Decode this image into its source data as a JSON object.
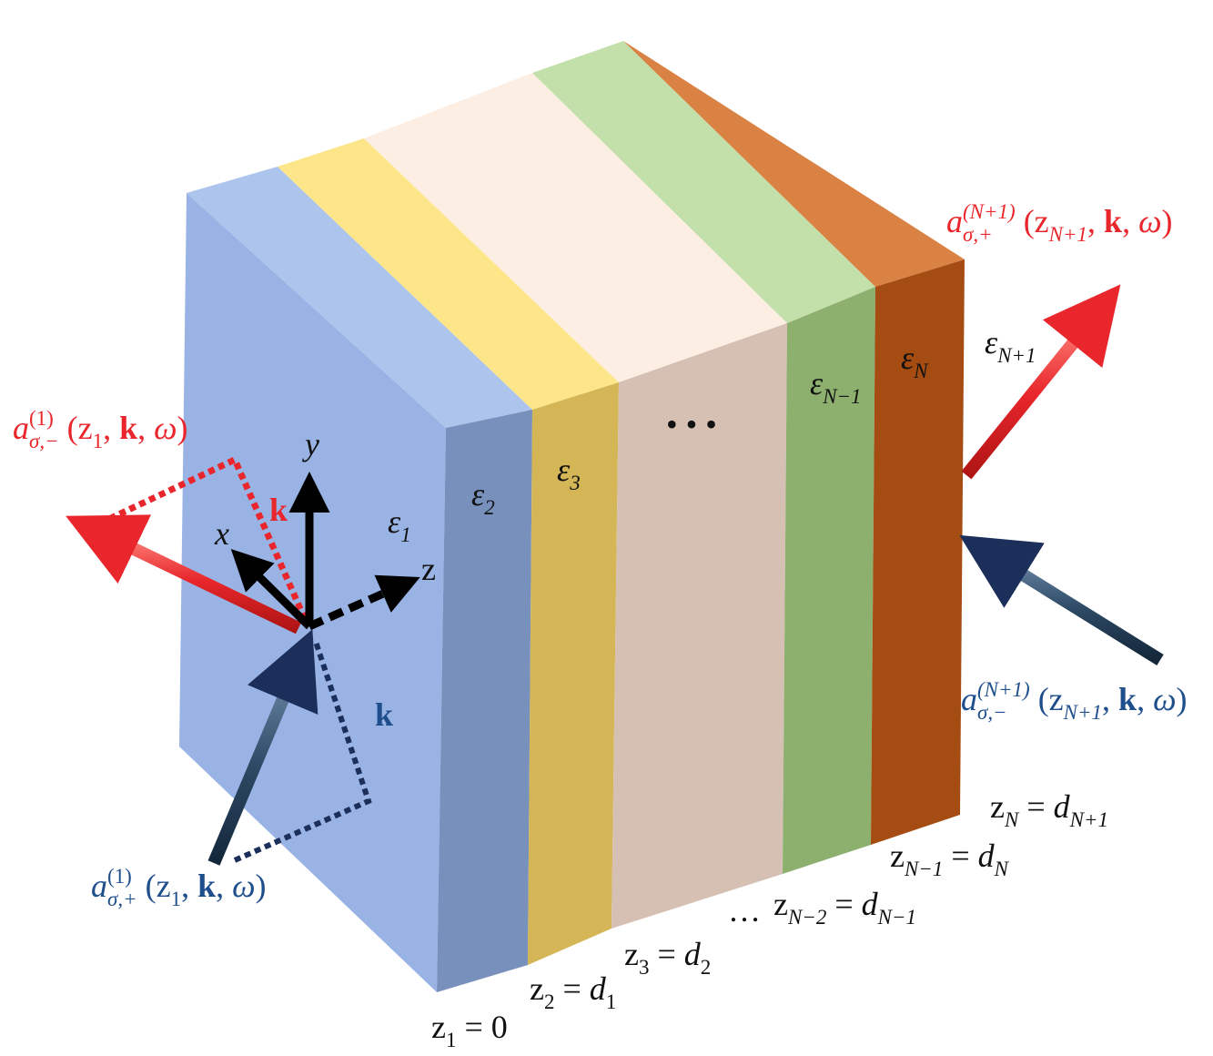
{
  "labels": [
    {
      "color": "#e8262b",
      "parts": [
        [
          "a",
          "i"
        ],
        [
          "(N+1)",
          "i sup"
        ],
        [
          "σ,+",
          "i sub stack"
        ],
        [
          " (z",
          "n"
        ],
        [
          "N+1",
          "i sub"
        ],
        [
          ", ",
          "n"
        ],
        [
          "k",
          "b"
        ],
        [
          ", ",
          "n"
        ],
        [
          "ω",
          "i"
        ],
        [
          ")",
          "n"
        ]
      ]
    },
    {
      "color": "#111111",
      "parts": [
        [
          "ε",
          "i"
        ],
        [
          "N+1",
          "i sub"
        ]
      ]
    },
    {
      "color": "#111111",
      "parts": [
        [
          "ε",
          "i"
        ],
        [
          "N",
          "i sub"
        ]
      ]
    },
    {
      "color": "#111111",
      "parts": [
        [
          "ε",
          "i"
        ],
        [
          "N−1",
          "i sub"
        ]
      ]
    },
    {
      "color": "#111111",
      "parts": [
        [
          "• • •",
          "n"
        ]
      ]
    },
    {
      "color": "#111111",
      "parts": [
        [
          "ε",
          "i"
        ],
        [
          "3",
          "i sub"
        ]
      ]
    },
    {
      "color": "#111111",
      "parts": [
        [
          "ε",
          "i"
        ],
        [
          "2",
          "i sub"
        ]
      ]
    },
    {
      "color": "#111111",
      "parts": [
        [
          "ε",
          "i"
        ],
        [
          "1",
          "i sub"
        ]
      ]
    },
    {
      "color": "#e8262b",
      "parts": [
        [
          "a",
          "i"
        ],
        [
          "(1)",
          "sup"
        ],
        [
          "σ,−",
          "i sub stack"
        ],
        [
          " (z",
          "n"
        ],
        [
          "1",
          "sub"
        ],
        [
          ", ",
          "n"
        ],
        [
          "k",
          "b"
        ],
        [
          ", ",
          "n"
        ],
        [
          "ω",
          "i"
        ],
        [
          ")",
          "n"
        ]
      ]
    },
    {
      "color": "#111111",
      "parts": [
        [
          "y",
          "i"
        ]
      ]
    },
    {
      "color": "#111111",
      "parts": [
        [
          "x",
          "i"
        ]
      ]
    },
    {
      "color": "#111111",
      "parts": [
        [
          "z",
          "n"
        ]
      ]
    },
    {
      "color": "#e8262b",
      "parts": [
        [
          "k",
          "b"
        ]
      ]
    },
    {
      "color": "#1f4e8c",
      "parts": [
        [
          "k",
          "b"
        ]
      ]
    },
    {
      "color": "#1f4e8c",
      "parts": [
        [
          "a",
          "i"
        ],
        [
          "(N+1)",
          "i sup"
        ],
        [
          "σ,−",
          "i sub stack"
        ],
        [
          " (z",
          "n"
        ],
        [
          "N+1",
          "i sub"
        ],
        [
          ", ",
          "n"
        ],
        [
          "k",
          "b"
        ],
        [
          ", ",
          "n"
        ],
        [
          "ω",
          "i"
        ],
        [
          ")",
          "n"
        ]
      ]
    },
    {
      "color": "#1f4e8c",
      "parts": [
        [
          "a",
          "i"
        ],
        [
          "(1)",
          "sup"
        ],
        [
          "σ,+",
          "i sub stack"
        ],
        [
          " (z",
          "n"
        ],
        [
          "1",
          "sub"
        ],
        [
          ", ",
          "n"
        ],
        [
          "k",
          "b"
        ],
        [
          ", ",
          "n"
        ],
        [
          "ω",
          "i"
        ],
        [
          ")",
          "n"
        ]
      ]
    },
    {
      "color": "#111111",
      "parts": [
        [
          "z",
          "n"
        ],
        [
          "N",
          "i sub"
        ],
        [
          " = ",
          "n"
        ],
        [
          "d",
          "i"
        ],
        [
          "N+1",
          "i sub"
        ]
      ]
    },
    {
      "color": "#111111",
      "parts": [
        [
          "z",
          "n"
        ],
        [
          "N−1",
          "i sub"
        ],
        [
          " = ",
          "n"
        ],
        [
          "d",
          "i"
        ],
        [
          "N",
          "i sub"
        ]
      ]
    },
    {
      "color": "#111111",
      "parts": [
        [
          "…",
          "n"
        ]
      ]
    },
    {
      "color": "#111111",
      "parts": [
        [
          "z",
          "n"
        ],
        [
          "N−2",
          "i sub"
        ],
        [
          " = ",
          "n"
        ],
        [
          "d",
          "i"
        ],
        [
          "N−1",
          "i sub"
        ]
      ]
    },
    {
      "color": "#111111",
      "parts": [
        [
          "z",
          "n"
        ],
        [
          "3",
          "sub"
        ],
        [
          " = ",
          "n"
        ],
        [
          "d",
          "i"
        ],
        [
          "2",
          "sub"
        ]
      ]
    },
    {
      "color": "#111111",
      "parts": [
        [
          "z",
          "n"
        ],
        [
          "2",
          "sub"
        ],
        [
          " = ",
          "n"
        ],
        [
          "d",
          "i"
        ],
        [
          "1",
          "sub"
        ]
      ]
    },
    {
      "color": "#111111",
      "parts": [
        [
          "z",
          "n"
        ],
        [
          "1",
          "sub"
        ],
        [
          " = 0",
          "n"
        ]
      ]
    }
  ]
}
